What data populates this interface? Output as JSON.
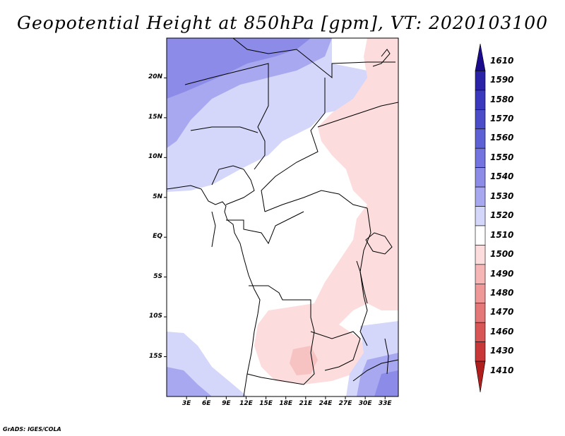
{
  "title": "Geopotential Height at 850hPa [gpm], VT: 2020103100",
  "credit": "GrADS: IGES/COLA",
  "map": {
    "lon_range": [
      0,
      35
    ],
    "lat_range": [
      -20,
      25
    ],
    "y_ticks": [
      {
        "value": 20,
        "label": "20N"
      },
      {
        "value": 15,
        "label": "15N"
      },
      {
        "value": 10,
        "label": "10N"
      },
      {
        "value": 5,
        "label": "5N"
      },
      {
        "value": 0,
        "label": "EQ"
      },
      {
        "value": -5,
        "label": "5S"
      },
      {
        "value": -10,
        "label": "10S"
      },
      {
        "value": -15,
        "label": "15S"
      }
    ],
    "x_ticks": [
      {
        "value": 3,
        "label": "3E"
      },
      {
        "value": 6,
        "label": "6E"
      },
      {
        "value": 9,
        "label": "9E"
      },
      {
        "value": 12,
        "label": "12E"
      },
      {
        "value": 15,
        "label": "15E"
      },
      {
        "value": 18,
        "label": "18E"
      },
      {
        "value": 21,
        "label": "21E"
      },
      {
        "value": 24,
        "label": "24E"
      },
      {
        "value": 27,
        "label": "27E"
      },
      {
        "value": 30,
        "label": "30E"
      },
      {
        "value": 33,
        "label": "33E"
      }
    ]
  },
  "colorbar": {
    "levels": [
      {
        "label": "1610",
        "color": "#1a0a8c"
      },
      {
        "label": "1590",
        "color": "#2a23a8"
      },
      {
        "label": "1580",
        "color": "#3a38bc"
      },
      {
        "label": "1570",
        "color": "#4a4cc8"
      },
      {
        "label": "1560",
        "color": "#5e60d6"
      },
      {
        "label": "1550",
        "color": "#7474e0"
      },
      {
        "label": "1540",
        "color": "#8c8ce8"
      },
      {
        "label": "1530",
        "color": "#a8a8f0"
      },
      {
        "label": "1520",
        "color": "#d4d6fa"
      },
      {
        "label": "1510",
        "color": "#ffffff"
      },
      {
        "label": "1500",
        "color": "#fcdcdc"
      },
      {
        "label": "1490",
        "color": "#f6b6b6"
      },
      {
        "label": "1480",
        "color": "#ee9898"
      },
      {
        "label": "1470",
        "color": "#e47878"
      },
      {
        "label": "1460",
        "color": "#d85656"
      },
      {
        "label": "1430",
        "color": "#c83838"
      },
      {
        "label": "1410",
        "color": "#b01e1e"
      }
    ]
  },
  "fields": {
    "blue_deep": "#8c8ce8",
    "blue_mid": "#a8a8f0",
    "blue_light": "#d4d6fa",
    "pink_light": "#fcdcdc",
    "pink_mid": "#f6c2c2",
    "coast_color": "#000000"
  }
}
